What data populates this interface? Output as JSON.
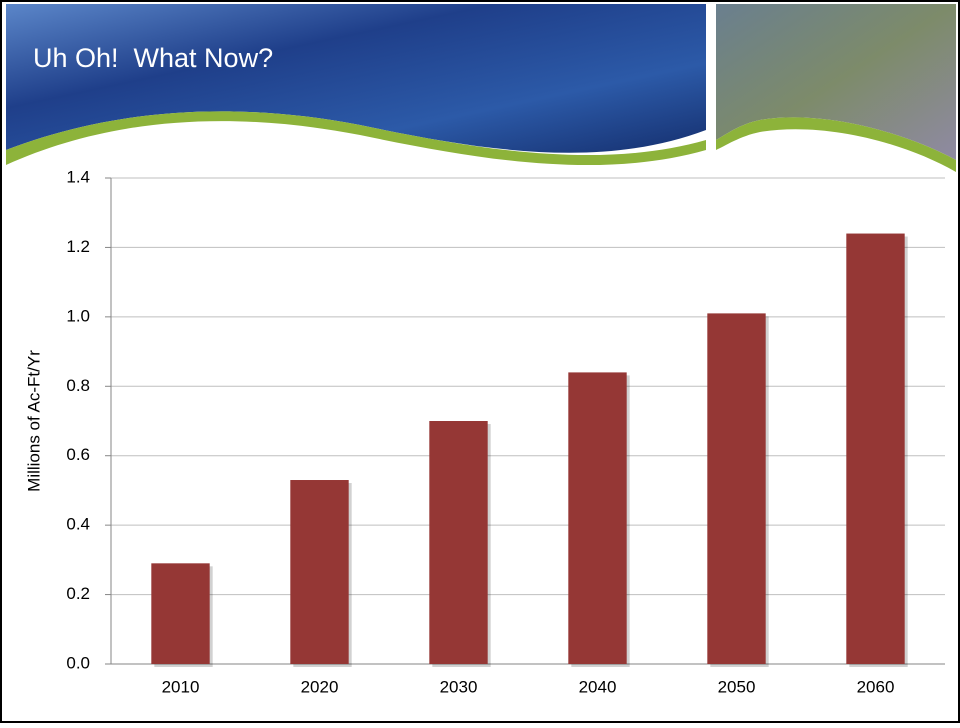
{
  "slide": {
    "title": "Uh Oh!  What Now?"
  },
  "chart_data": {
    "type": "bar",
    "y_label": "Millions of Ac-Ft/Yr",
    "categories": [
      "2010",
      "2020",
      "2030",
      "2040",
      "2050",
      "2060"
    ],
    "values": [
      0.29,
      0.53,
      0.7,
      0.84,
      1.01,
      1.24
    ],
    "color": "#953735",
    "ylim": [
      0,
      1.4
    ],
    "yticks": [
      {
        "value": 0,
        "label": "0.0"
      },
      0.2,
      0.4,
      0.6,
      0.8,
      {
        "value": 1,
        "label": "1.0"
      },
      1.2,
      1.4
    ],
    "grid": true
  }
}
